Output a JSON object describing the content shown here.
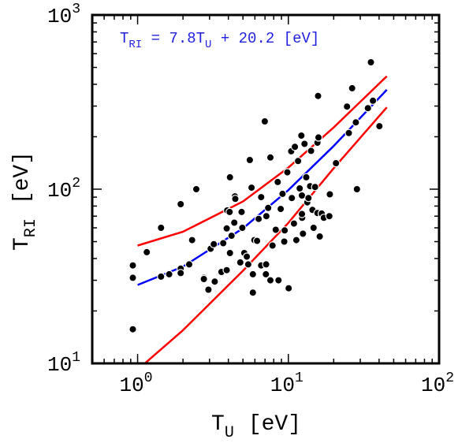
{
  "chart_data": {
    "type": "scatter",
    "xscale": "log",
    "yscale": "log",
    "xlim": [
      0.5,
      100
    ],
    "ylim": [
      10,
      1000
    ],
    "x_ticks": [
      {
        "value": 1,
        "base": "10",
        "exp": "0"
      },
      {
        "value": 10,
        "base": "10",
        "exp": "1"
      },
      {
        "value": 100,
        "base": "10",
        "exp": "2"
      }
    ],
    "y_ticks": [
      {
        "value": 10,
        "base": "10",
        "exp": "1"
      },
      {
        "value": 100,
        "base": "10",
        "exp": "2"
      },
      {
        "value": 1000,
        "base": "10",
        "exp": "3"
      }
    ],
    "xlabel": {
      "main": "T",
      "sub": "U",
      "unit": "[eV]"
    },
    "ylabel": {
      "main": "T",
      "sub": "RI",
      "unit": "[eV]"
    },
    "annotation": {
      "t": "T",
      "sub1": "RI",
      "eq": " = 7.8T",
      "sub2": "U",
      "rest": " + 20.2 [eV]",
      "color": "#1f1fe0"
    },
    "points": [
      [
        0.93,
        15.7
      ],
      [
        0.93,
        31
      ],
      [
        0.93,
        36.5
      ],
      [
        1.15,
        43.5
      ],
      [
        1.43,
        31.5
      ],
      [
        1.43,
        60
      ],
      [
        1.62,
        32.5
      ],
      [
        1.93,
        35
      ],
      [
        1.93,
        33
      ],
      [
        1.93,
        82
      ],
      [
        2.2,
        37
      ],
      [
        2.3,
        51
      ],
      [
        2.45,
        100
      ],
      [
        2.75,
        31
      ],
      [
        2.75,
        30.5
      ],
      [
        2.95,
        26.5
      ],
      [
        3.05,
        45.5
      ],
      [
        3.2,
        48.3
      ],
      [
        3.25,
        29.5
      ],
      [
        3.6,
        33.5
      ],
      [
        3.7,
        49
      ],
      [
        3.9,
        34.3
      ],
      [
        3.9,
        59.5
      ],
      [
        3.93,
        75.5
      ],
      [
        4.1,
        43
      ],
      [
        4.08,
        74
      ],
      [
        4.1,
        117
      ],
      [
        4.2,
        54
      ],
      [
        4.42,
        91
      ],
      [
        4.45,
        88
      ],
      [
        4.38,
        64.2
      ],
      [
        4.8,
        38
      ],
      [
        4.9,
        74
      ],
      [
        4.95,
        60
      ],
      [
        5.1,
        43
      ],
      [
        5.3,
        41
      ],
      [
        5.42,
        37
      ],
      [
        5.55,
        147
      ],
      [
        5.7,
        102
      ],
      [
        5.82,
        32.5
      ],
      [
        5.82,
        25.5
      ],
      [
        5.95,
        51
      ],
      [
        6.2,
        50.5
      ],
      [
        6.35,
        67.5
      ],
      [
        6.6,
        36.5
      ],
      [
        6.6,
        90
      ],
      [
        6.98,
        245
      ],
      [
        7.12,
        37
      ],
      [
        7.1,
        32.5
      ],
      [
        7.15,
        70
      ],
      [
        7.35,
        78
      ],
      [
        7.6,
        30
      ],
      [
        7.6,
        152
      ],
      [
        7.85,
        47.5
      ],
      [
        8.25,
        58.5
      ],
      [
        8.5,
        110
      ],
      [
        8.6,
        30
      ],
      [
        8.9,
        77
      ],
      [
        9.15,
        94
      ],
      [
        9.4,
        50
      ],
      [
        9.45,
        58
      ],
      [
        9.85,
        125
      ],
      [
        10.05,
        27
      ],
      [
        10.45,
        165
      ],
      [
        10.55,
        89
      ],
      [
        10.9,
        63.5
      ],
      [
        11.05,
        175
      ],
      [
        11.3,
        51
      ],
      [
        11.6,
        145
      ],
      [
        11.9,
        101
      ],
      [
        12.2,
        203
      ],
      [
        12.3,
        92
      ],
      [
        12.35,
        68.5
      ],
      [
        12.3,
        72
      ],
      [
        12.5,
        55.5
      ],
      [
        12.8,
        182
      ],
      [
        13.15,
        117
      ],
      [
        13.35,
        84
      ],
      [
        13.6,
        89
      ],
      [
        13.95,
        104
      ],
      [
        14.15,
        166
      ],
      [
        14.45,
        76
      ],
      [
        14.7,
        60
      ],
      [
        15.05,
        103
      ],
      [
        15.6,
        73
      ],
      [
        15.6,
        185
      ],
      [
        15.85,
        198
      ],
      [
        15.75,
        343
      ],
      [
        16.15,
        53.5
      ],
      [
        16.65,
        72.5
      ],
      [
        17.2,
        68.5
      ],
      [
        18.7,
        70
      ],
      [
        18.85,
        93.5
      ],
      [
        20.7,
        141
      ],
      [
        24.5,
        298
      ],
      [
        25.2,
        210
      ],
      [
        26.5,
        380
      ],
      [
        28.05,
        242
      ],
      [
        28.5,
        100
      ],
      [
        33.7,
        292
      ],
      [
        35.3,
        535
      ],
      [
        36.4,
        322
      ],
      [
        40.2,
        230
      ]
    ],
    "series": [
      {
        "color": "#0000ff",
        "points": [
          [
            1,
            28.2
          ],
          [
            2,
            35.9
          ],
          [
            5,
            59.6
          ],
          [
            10,
            98.8
          ],
          [
            20,
            177
          ],
          [
            45,
            372
          ]
        ]
      },
      {
        "color": "#ff0000",
        "points": [
          [
            1,
            47.5
          ],
          [
            2,
            57
          ],
          [
            5,
            85
          ],
          [
            10,
            133
          ],
          [
            20,
            226
          ],
          [
            45,
            445
          ]
        ]
      },
      {
        "color": "#ff0000",
        "points": [
          [
            1,
            9.2
          ],
          [
            2,
            15.5
          ],
          [
            5,
            34
          ],
          [
            10,
            64
          ],
          [
            20,
            132
          ],
          [
            45,
            295
          ]
        ]
      }
    ]
  }
}
